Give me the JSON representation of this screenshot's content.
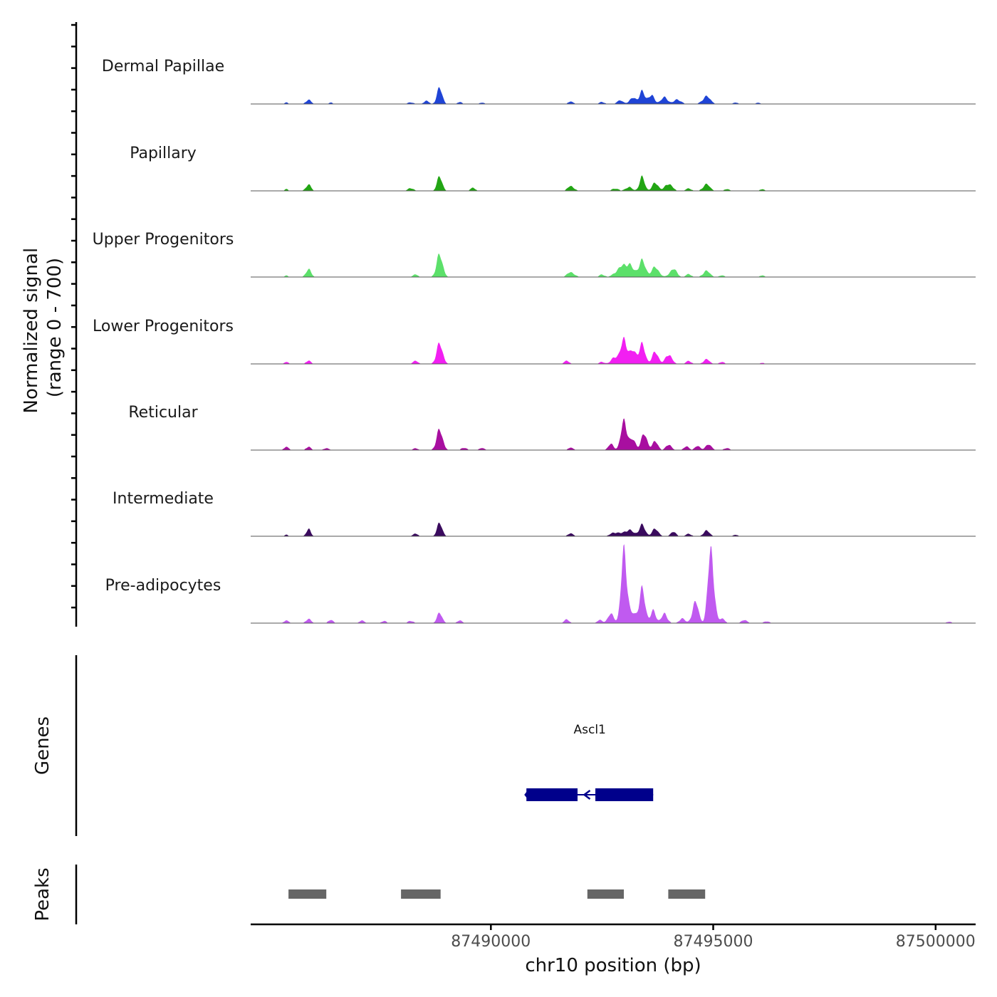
{
  "chart_data": {
    "type": "area",
    "y_axis_label": [
      "Normalized signal",
      "(range 0 - 700)"
    ],
    "y_range": [
      0,
      700
    ],
    "x_label": "chr10 position (bp)",
    "x_range": [
      87484600,
      87500900
    ],
    "x_ticks": [
      {
        "value": 87490000,
        "label": "87490000"
      },
      {
        "value": 87495000,
        "label": "87495000"
      },
      {
        "value": 87500000,
        "label": "87500000"
      }
    ],
    "coverage_tracks": [
      {
        "name": "Dermal Papillae",
        "color": "#1f44d6",
        "peaks": [
          [
            87485400,
            0.3,
            40
          ],
          [
            87485900,
            0.8,
            60
          ],
          [
            87486400,
            0.3,
            40
          ],
          [
            87488200,
            0.35,
            60
          ],
          [
            87488550,
            0.6,
            60
          ],
          [
            87488850,
            3.2,
            60
          ],
          [
            87489300,
            0.35,
            60
          ],
          [
            87489800,
            0.25,
            60
          ],
          [
            87491800,
            0.5,
            60
          ],
          [
            87492500,
            0.4,
            60
          ],
          [
            87492900,
            0.7,
            70
          ],
          [
            87493200,
            1.2,
            80
          ],
          [
            87493400,
            2.4,
            60
          ],
          [
            87493600,
            1.8,
            70
          ],
          [
            87493900,
            1.3,
            80
          ],
          [
            87494200,
            0.9,
            80
          ],
          [
            87494850,
            1.5,
            90
          ],
          [
            87495500,
            0.3,
            60
          ],
          [
            87496000,
            0.25,
            60
          ]
        ]
      },
      {
        "name": "Papillary",
        "color": "#22a514",
        "peaks": [
          [
            87485400,
            0.35,
            40
          ],
          [
            87485900,
            1.2,
            60
          ],
          [
            87488200,
            0.6,
            60
          ],
          [
            87488850,
            2.8,
            60
          ],
          [
            87489600,
            0.6,
            60
          ],
          [
            87491800,
            1.0,
            70
          ],
          [
            87492800,
            0.5,
            70
          ],
          [
            87493100,
            0.8,
            70
          ],
          [
            87493400,
            2.7,
            60
          ],
          [
            87493700,
            1.6,
            70
          ],
          [
            87494000,
            1.5,
            80
          ],
          [
            87494450,
            0.5,
            60
          ],
          [
            87494850,
            1.3,
            80
          ],
          [
            87495300,
            0.35,
            60
          ],
          [
            87496100,
            0.3,
            60
          ]
        ]
      },
      {
        "name": "Upper Progenitors",
        "color": "#5ce06a",
        "peaks": [
          [
            87485400,
            0.3,
            40
          ],
          [
            87485900,
            1.5,
            60
          ],
          [
            87488300,
            0.5,
            60
          ],
          [
            87488850,
            4.4,
            70
          ],
          [
            87491800,
            1.0,
            80
          ],
          [
            87492500,
            0.5,
            60
          ],
          [
            87492900,
            1.6,
            110
          ],
          [
            87493100,
            2.4,
            100
          ],
          [
            87493400,
            3.2,
            80
          ],
          [
            87493700,
            2.0,
            80
          ],
          [
            87494100,
            1.6,
            80
          ],
          [
            87494450,
            0.6,
            60
          ],
          [
            87494850,
            1.2,
            80
          ],
          [
            87495200,
            0.35,
            60
          ],
          [
            87496100,
            0.3,
            60
          ]
        ]
      },
      {
        "name": "Lower Progenitors",
        "color": "#f21ff2",
        "peaks": [
          [
            87485400,
            0.35,
            60
          ],
          [
            87485900,
            0.6,
            60
          ],
          [
            87488300,
            0.6,
            60
          ],
          [
            87488850,
            4.0,
            70
          ],
          [
            87491700,
            0.6,
            60
          ],
          [
            87492500,
            0.4,
            60
          ],
          [
            87492800,
            1.5,
            80
          ],
          [
            87493000,
            5.0,
            70
          ],
          [
            87493200,
            2.5,
            70
          ],
          [
            87493400,
            3.8,
            70
          ],
          [
            87493700,
            2.4,
            70
          ],
          [
            87494000,
            2.0,
            70
          ],
          [
            87494450,
            0.6,
            60
          ],
          [
            87494850,
            0.9,
            70
          ],
          [
            87495200,
            0.4,
            60
          ],
          [
            87496100,
            0.2,
            60
          ]
        ]
      },
      {
        "name": "Reticular",
        "color": "#a80fa0",
        "peaks": [
          [
            87485400,
            0.6,
            60
          ],
          [
            87485900,
            0.6,
            60
          ],
          [
            87486300,
            0.4,
            60
          ],
          [
            87488300,
            0.35,
            60
          ],
          [
            87488850,
            4.0,
            70
          ],
          [
            87489400,
            0.5,
            60
          ],
          [
            87489800,
            0.4,
            60
          ],
          [
            87491800,
            0.5,
            60
          ],
          [
            87492700,
            1.2,
            60
          ],
          [
            87493000,
            6.0,
            70
          ],
          [
            87493200,
            2.0,
            60
          ],
          [
            87493450,
            3.2,
            70
          ],
          [
            87493700,
            1.8,
            60
          ],
          [
            87494000,
            1.2,
            60
          ],
          [
            87494400,
            0.7,
            60
          ],
          [
            87494650,
            0.8,
            60
          ],
          [
            87494900,
            1.1,
            70
          ],
          [
            87495300,
            0.4,
            60
          ]
        ]
      },
      {
        "name": "Intermediate",
        "color": "#3a0b5e",
        "peaks": [
          [
            87485400,
            0.3,
            40
          ],
          [
            87485900,
            1.4,
            50
          ],
          [
            87488300,
            0.5,
            60
          ],
          [
            87488850,
            2.6,
            60
          ],
          [
            87491800,
            0.6,
            60
          ],
          [
            87492800,
            0.8,
            100
          ],
          [
            87493100,
            1.3,
            100
          ],
          [
            87493400,
            2.2,
            70
          ],
          [
            87493700,
            1.5,
            70
          ],
          [
            87494100,
            0.9,
            60
          ],
          [
            87494450,
            0.5,
            60
          ],
          [
            87494850,
            1.1,
            70
          ],
          [
            87495500,
            0.3,
            60
          ]
        ]
      },
      {
        "name": "Pre-adipocytes",
        "color": "#c05af0",
        "peaks": [
          [
            87485400,
            0.5,
            60
          ],
          [
            87485900,
            0.8,
            60
          ],
          [
            87486400,
            0.6,
            60
          ],
          [
            87487100,
            0.5,
            60
          ],
          [
            87487600,
            0.4,
            60
          ],
          [
            87488200,
            0.5,
            60
          ],
          [
            87488850,
            2.0,
            60
          ],
          [
            87489300,
            0.5,
            60
          ],
          [
            87491700,
            0.7,
            60
          ],
          [
            87492450,
            0.6,
            60
          ],
          [
            87492700,
            1.8,
            70
          ],
          [
            87493000,
            15.0,
            65
          ],
          [
            87493200,
            1.8,
            60
          ],
          [
            87493400,
            6.6,
            70
          ],
          [
            87493650,
            2.4,
            60
          ],
          [
            87493900,
            1.8,
            70
          ],
          [
            87494300,
            1.0,
            60
          ],
          [
            87494600,
            4.2,
            70
          ],
          [
            87494950,
            15.6,
            65
          ],
          [
            87495200,
            1.0,
            60
          ],
          [
            87495700,
            0.7,
            60
          ],
          [
            87496200,
            0.4,
            60
          ],
          [
            87500300,
            0.3,
            60
          ]
        ]
      }
    ],
    "genes_track": {
      "label": "Genes",
      "genes": [
        {
          "name": "Ascl1",
          "start": 87490800,
          "end": 87493650,
          "strand": "-",
          "exons": [
            [
              87490800,
              87491950
            ],
            [
              87492350,
              87493650
            ]
          ],
          "color": "#00008b"
        }
      ]
    },
    "peaks_track": {
      "label": "Peaks",
      "color": "#666666",
      "regions": [
        [
          87485450,
          87486300
        ],
        [
          87487980,
          87488870
        ],
        [
          87492170,
          87492990
        ],
        [
          87493990,
          87494820
        ]
      ]
    }
  }
}
